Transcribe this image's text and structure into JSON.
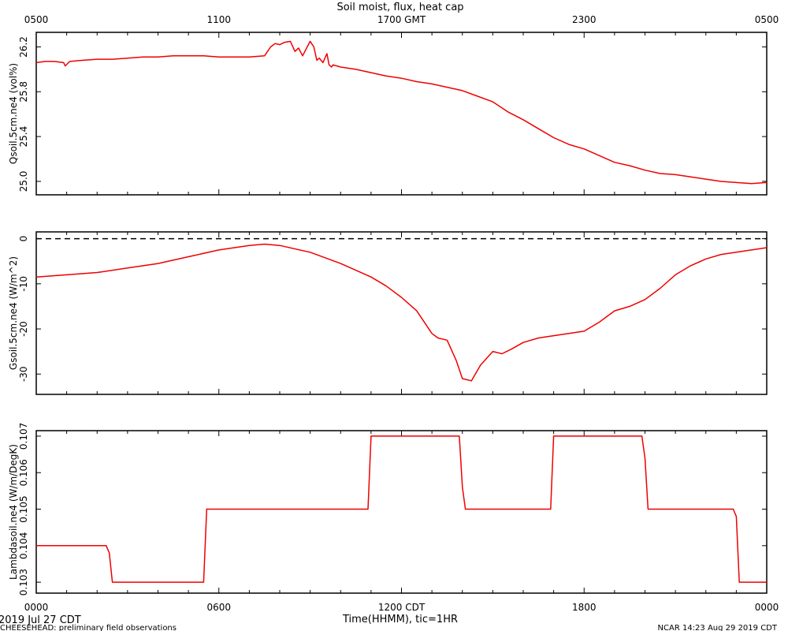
{
  "page": {
    "title": "Soil moist, flux, heat cap",
    "date_left": "2019 Jul 27 CDT",
    "footer_left": "CHEESEHEAD: preliminary field observations",
    "footer_right": "NCAR 14:23 Aug 29 2019 CDT",
    "xlabel": "Time(HHMM), tic=1HR",
    "top_ticks": [
      "0500",
      "1100",
      "1700 GMT",
      "2300",
      "0500"
    ],
    "bottom_ticks": [
      "0000",
      "0600",
      "1200 CDT",
      "1800",
      "0000"
    ]
  },
  "colors": {
    "line": "#ee0000",
    "axis": "#000000",
    "zero_line": "#000000"
  },
  "chart_data": [
    {
      "type": "line",
      "ylabel": "Qsoil.5cm.ne4 (vol%)",
      "xlim": [
        0,
        24
      ],
      "ylim": [
        24.88,
        26.33
      ],
      "yticks": [
        25.0,
        25.4,
        25.8,
        26.2
      ],
      "ytick_labels": [
        "25.0",
        "25.4",
        "25.8",
        "26.2"
      ],
      "series": [
        {
          "x": [
            0,
            0.3,
            0.6,
            0.9,
            0.95,
            1.1,
            1.5,
            2.0,
            2.5,
            3.0,
            3.5,
            4.0,
            4.5,
            5.0,
            5.5,
            6.0,
            6.5,
            7.0,
            7.5,
            7.7,
            7.85,
            8.0,
            8.15,
            8.35,
            8.5,
            8.62,
            8.75,
            8.9,
            9.0,
            9.12,
            9.22,
            9.3,
            9.42,
            9.55,
            9.62,
            9.7,
            9.75,
            10.0,
            10.5,
            11.0,
            11.5,
            12.0,
            12.5,
            13.0,
            13.5,
            14.0,
            14.5,
            15.0,
            15.5,
            16.0,
            16.5,
            17.0,
            17.5,
            18.0,
            18.5,
            19.0,
            19.5,
            20.0,
            20.5,
            21.0,
            21.5,
            22.0,
            22.5,
            23.0,
            23.5,
            24.0
          ],
          "y": [
            26.06,
            26.07,
            26.07,
            26.06,
            26.03,
            26.07,
            26.08,
            26.09,
            26.09,
            26.1,
            26.11,
            26.11,
            26.12,
            26.12,
            26.12,
            26.11,
            26.11,
            26.11,
            26.12,
            26.2,
            26.23,
            26.22,
            26.24,
            26.25,
            26.16,
            26.19,
            26.12,
            26.2,
            26.25,
            26.2,
            26.08,
            26.1,
            26.06,
            26.14,
            26.04,
            26.02,
            26.04,
            26.02,
            26.0,
            25.97,
            25.94,
            25.92,
            25.89,
            25.87,
            25.84,
            25.81,
            25.76,
            25.71,
            25.62,
            25.55,
            25.47,
            25.39,
            25.33,
            25.29,
            25.23,
            25.17,
            25.14,
            25.1,
            25.07,
            25.06,
            25.04,
            25.02,
            25.0,
            24.99,
            24.98,
            24.99
          ]
        }
      ]
    },
    {
      "type": "line",
      "ylabel": "Gsoil.5cm.ne4 (W/m^2)",
      "xlim": [
        0,
        24
      ],
      "ylim": [
        -34.5,
        1.5
      ],
      "yticks": [
        0,
        -10,
        -20,
        -30
      ],
      "ytick_labels": [
        "0",
        "-10",
        "-20",
        "-30"
      ],
      "hline": 0,
      "series": [
        {
          "x": [
            0,
            1,
            2,
            3,
            4,
            5,
            6,
            7,
            7.5,
            8,
            9,
            10,
            11,
            11.5,
            12,
            12.5,
            12.8,
            13.0,
            13.2,
            13.5,
            13.8,
            14.0,
            14.3,
            14.6,
            15.0,
            15.3,
            15.6,
            16.0,
            16.5,
            17.0,
            17.5,
            18.0,
            18.5,
            19.0,
            19.5,
            20.0,
            20.5,
            21.0,
            21.5,
            22.0,
            22.5,
            23.0,
            23.5,
            24.0
          ],
          "y": [
            -8.5,
            -8.0,
            -7.5,
            -6.5,
            -5.5,
            -4.0,
            -2.5,
            -1.5,
            -1.2,
            -1.5,
            -3.0,
            -5.5,
            -8.5,
            -10.5,
            -13.0,
            -16.0,
            -19.0,
            -21.0,
            -22.0,
            -22.5,
            -27.0,
            -31.0,
            -31.5,
            -28.0,
            -25.0,
            -25.5,
            -24.5,
            -23.0,
            -22.0,
            -21.5,
            -21.0,
            -20.5,
            -18.5,
            -16.0,
            -15.0,
            -13.5,
            -11.0,
            -8.0,
            -6.0,
            -4.5,
            -3.5,
            -3.0,
            -2.5,
            -2.0
          ]
        }
      ]
    },
    {
      "type": "line",
      "ylabel": "Lambdasoil.ne4 (W/m/DegK)",
      "xlim": [
        0,
        24
      ],
      "ylim": [
        0.1027,
        0.10715
      ],
      "yticks": [
        0.103,
        0.104,
        0.105,
        0.106,
        0.107
      ],
      "ytick_labels": [
        "0.103",
        "0.104",
        "0.105",
        "0.106",
        "0.107"
      ],
      "series": [
        {
          "x": [
            0,
            2.3,
            2.4,
            2.5,
            5.5,
            5.6,
            10.9,
            11.0,
            13.9,
            14.0,
            14.1,
            16.9,
            17.0,
            19.9,
            20.0,
            20.1,
            22.9,
            23.0,
            23.1,
            24.0
          ],
          "y": [
            0.104,
            0.104,
            0.1038,
            0.103,
            0.103,
            0.105,
            0.105,
            0.107,
            0.107,
            0.1056,
            0.105,
            0.105,
            0.107,
            0.107,
            0.1064,
            0.105,
            0.105,
            0.1048,
            0.103,
            0.103
          ]
        }
      ]
    }
  ]
}
